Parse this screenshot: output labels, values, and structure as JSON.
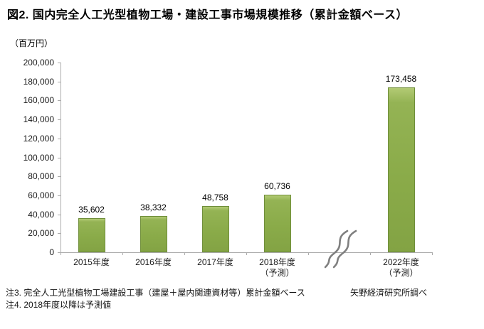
{
  "title": "図2. 国内完全人工光型植物工場・建設工事市場規模推移（累計金額ベース）",
  "unit_label": "（百万円）",
  "chart_data": {
    "type": "bar",
    "title": "図2. 国内完全人工光型植物工場・建設工事市場規模推移（累計金額ベース）",
    "ylabel": "（百万円）",
    "xlabel": "",
    "ylim": [
      0,
      200000
    ],
    "ytick_step": 20000,
    "grid": false,
    "legend": false,
    "bar_color": "#8aab49",
    "categories": [
      "2015年度",
      "2016年度",
      "2017年度",
      "2018年度",
      "2022年度"
    ],
    "category_sublabels": [
      "",
      "",
      "",
      "（予測）",
      "（予測）"
    ],
    "values": [
      35602,
      38332,
      48758,
      60736,
      173458
    ],
    "value_labels": [
      "35,602",
      "38,332",
      "48,758",
      "60,736",
      "173,458"
    ],
    "axis_break": {
      "present": true,
      "between": [
        "2018年度",
        "2022年度"
      ]
    }
  },
  "notes": {
    "note3": "注3. 完全人工光型植物工場建設工事（建屋＋屋内関連資材等）累計金額ベース",
    "note4": "注4. 2018年度以降は予測値",
    "source": "矢野経済研究所調べ"
  }
}
